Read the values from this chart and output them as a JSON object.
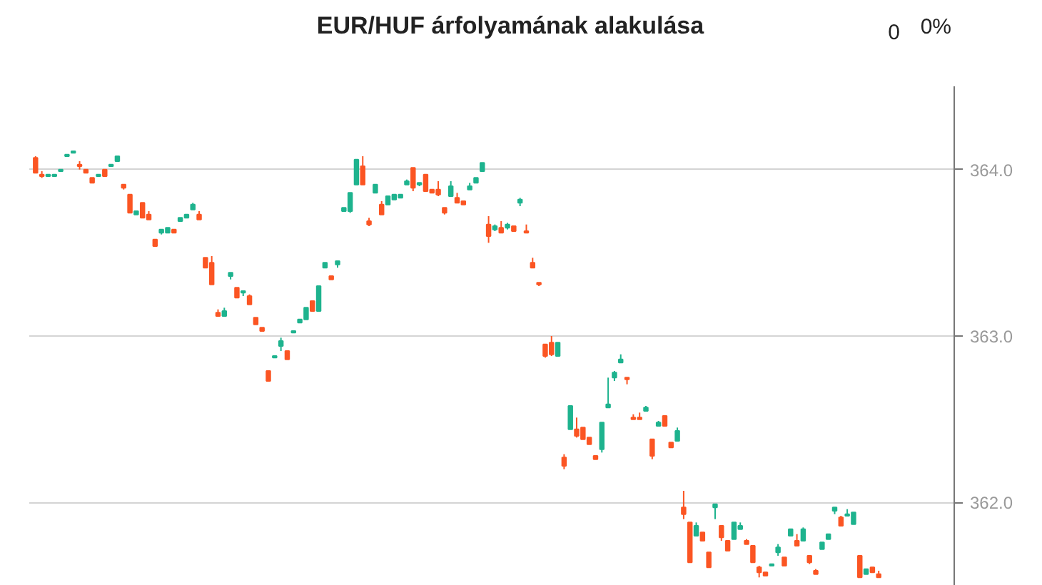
{
  "chart_data": {
    "type": "candlestick",
    "title": "EUR/HUF árfolyamának alakulása",
    "annotations": [
      "0",
      "0%"
    ],
    "colors": [
      "#fb5523",
      "#fb5523",
      "#1eb38e",
      "#1eb38e",
      "#1eb38e",
      "#1eb38e",
      "#1eb38e",
      "#fb5523",
      "#fb5523",
      "#fb5523",
      "#1eb38e",
      "#fb5523",
      "#1eb38e",
      "#1eb38e",
      "#fb5523",
      "#fb5523",
      "#1eb38e",
      "#fb5523",
      "#fb5523",
      "#fb5523",
      "#1eb38e",
      "#1eb38e",
      "#fb5523",
      "#1eb38e",
      "#1eb38e",
      "#1eb38e",
      "#fb5523",
      "#fb5523",
      "#fb5523",
      "#fb5523",
      "#1eb38e",
      "#1eb38e",
      "#fb5523",
      "#1eb38e",
      "#fb5523",
      "#fb5523",
      "#fb5523",
      "#fb5523",
      "#1eb38e",
      "#1eb38e",
      "#fb5523",
      "#1eb38e",
      "#1eb38e",
      "#1eb38e",
      "#fb5523",
      "#1eb38e",
      "#1eb38e",
      "#fb5523",
      "#1eb38e",
      "#1eb38e",
      "#1eb38e",
      "#1eb38e",
      "#fb5523",
      "#fb5523",
      "#1eb38e",
      "#fb5523",
      "#1eb38e",
      "#1eb38e",
      "#1eb38e",
      "#1eb38e",
      "#fb5523",
      "#1eb38e",
      "#fb5523",
      "#fb5523",
      "#fb5523",
      "#fb5523",
      "#1eb38e",
      "#fb5523",
      "#fb5523",
      "#1eb38e",
      "#1eb38e",
      "#1eb38e",
      "#fb5523",
      "#1eb38e",
      "#fb5523",
      "#1eb38e",
      "#fb5523",
      "#1eb38e",
      "#fb5523",
      "#fb5523",
      "#fb5523",
      "#fb5523",
      "#fb5523",
      "#1eb38e",
      "#fb5523",
      "#1eb38e",
      "#fb5523",
      "#fb5523",
      "#fb5523",
      "#fb5523",
      "#1eb38e",
      "#1eb38e",
      "#1eb38e",
      "#1eb38e",
      "#fb5523",
      "#fb5523",
      "#fb5523",
      "#1eb38e",
      "#fb5523",
      "#1eb38e",
      "#fb5523",
      "#fb5523",
      "#1eb38e",
      "#fb5523",
      "#fb5523",
      "#1eb38e",
      "#fb5523",
      "#fb5523",
      "#1eb38e",
      "#fb5523",
      "#fb5523",
      "#1eb38e",
      "#1eb38e",
      "#fb5523",
      "#fb5523",
      "#fb5523",
      "#fb5523",
      "#1eb38e",
      "#1eb38e",
      "#fb5523",
      "#1eb38e",
      "#fb5523",
      "#1eb38e",
      "#fb5523",
      "#fb5523",
      "#1eb38e",
      "#1eb38e",
      "#1eb38e",
      "#fb5523",
      "#1eb38e",
      "#1eb38e",
      "#fb5523",
      "#1eb38e",
      "#fb5523",
      "#fb5523"
    ],
    "ylim": [
      361.5,
      364.5
    ],
    "yticks": [
      {
        "value": 362,
        "label": "362.0"
      },
      {
        "value": 363,
        "label": "363.0"
      },
      {
        "value": 364,
        "label": "364.0"
      }
    ],
    "grid": "y",
    "tick_labels": "y",
    "categories": [
      null,
      null,
      null,
      null,
      null,
      null,
      null,
      null,
      null,
      null,
      null,
      null,
      null,
      null,
      null,
      null,
      null,
      null,
      null,
      null,
      null,
      null,
      null,
      null,
      null,
      null,
      null,
      null,
      null,
      null,
      null,
      null,
      null,
      null,
      null,
      null,
      null,
      null,
      null,
      null,
      null,
      null,
      null,
      null,
      null,
      null,
      null,
      null,
      null,
      null,
      null,
      null,
      null,
      null,
      null,
      null,
      null,
      null,
      null,
      null,
      null,
      null,
      null,
      null,
      null,
      null,
      null,
      null,
      null,
      null,
      null,
      null,
      null,
      null,
      null,
      null,
      null,
      null,
      null,
      null,
      null,
      null,
      null,
      null,
      null,
      null,
      null,
      null,
      null,
      null,
      null,
      null,
      null,
      null,
      null,
      null,
      null,
      null,
      null,
      null,
      null,
      null,
      null,
      null,
      null,
      null,
      null,
      null,
      null,
      null,
      null,
      null,
      null,
      null,
      null,
      null,
      null,
      null,
      null,
      null,
      null,
      null,
      null,
      null,
      null,
      null,
      null,
      null,
      null,
      null,
      null,
      null,
      null,
      null,
      null
    ],
    "ohlc": [
      [
        364.07,
        364.08,
        363.98,
        363.98
      ],
      [
        363.97,
        363.99,
        363.95,
        363.96
      ],
      [
        363.96,
        363.97,
        363.96,
        363.97
      ],
      [
        363.96,
        363.97,
        363.96,
        363.97
      ],
      [
        363.99,
        364.0,
        363.99,
        364.0
      ],
      [
        364.08,
        364.09,
        364.08,
        364.09
      ],
      [
        364.1,
        364.11,
        364.1,
        364.11
      ],
      [
        364.03,
        364.05,
        364.0,
        364.02
      ],
      [
        364.0,
        364.0,
        363.98,
        363.98
      ],
      [
        363.95,
        363.95,
        363.92,
        363.92
      ],
      [
        363.96,
        363.97,
        363.96,
        363.97
      ],
      [
        364.0,
        364.0,
        363.96,
        363.96
      ],
      [
        364.02,
        364.03,
        364.02,
        364.03
      ],
      [
        364.05,
        364.08,
        364.05,
        364.08
      ],
      [
        363.91,
        363.91,
        363.88,
        363.89
      ],
      [
        363.85,
        363.85,
        363.74,
        363.74
      ],
      [
        363.73,
        363.75,
        363.73,
        363.75
      ],
      [
        363.8,
        363.8,
        363.71,
        363.71
      ],
      [
        363.73,
        363.75,
        363.7,
        363.7
      ],
      [
        363.58,
        363.58,
        363.54,
        363.54
      ],
      [
        363.62,
        363.64,
        363.61,
        363.64
      ],
      [
        363.62,
        363.65,
        363.62,
        363.65
      ],
      [
        363.64,
        363.64,
        363.62,
        363.62
      ],
      [
        363.69,
        363.71,
        363.69,
        363.71
      ],
      [
        363.71,
        363.73,
        363.71,
        363.73
      ],
      [
        363.76,
        363.8,
        363.76,
        363.79
      ],
      [
        363.73,
        363.75,
        363.7,
        363.7
      ],
      [
        363.47,
        363.47,
        363.41,
        363.41
      ],
      [
        363.44,
        363.48,
        363.31,
        363.31
      ],
      [
        363.14,
        363.16,
        363.12,
        363.12
      ],
      [
        363.12,
        363.17,
        363.12,
        363.15
      ],
      [
        363.36,
        363.38,
        363.34,
        363.38
      ],
      [
        363.29,
        363.29,
        363.23,
        363.23
      ],
      [
        363.26,
        363.27,
        363.24,
        363.27
      ],
      [
        363.24,
        363.25,
        363.19,
        363.19
      ],
      [
        363.11,
        363.11,
        363.07,
        363.07
      ],
      [
        363.05,
        363.05,
        363.03,
        363.03
      ],
      [
        362.79,
        362.79,
        362.73,
        362.73
      ],
      [
        362.87,
        362.88,
        362.87,
        362.88
      ],
      [
        362.94,
        362.99,
        362.91,
        362.97
      ],
      [
        362.91,
        362.91,
        362.86,
        362.86
      ],
      [
        363.02,
        363.03,
        363.02,
        363.03
      ],
      [
        363.08,
        363.1,
        363.08,
        363.1
      ],
      [
        363.1,
        363.17,
        363.1,
        363.17
      ],
      [
        363.21,
        363.21,
        363.15,
        363.15
      ],
      [
        363.15,
        363.3,
        363.15,
        363.3
      ],
      [
        363.41,
        363.44,
        363.41,
        363.44
      ],
      [
        363.36,
        363.36,
        363.34,
        363.34
      ],
      [
        363.43,
        363.45,
        363.41,
        363.45
      ],
      [
        363.75,
        363.77,
        363.75,
        363.77
      ],
      [
        363.75,
        363.86,
        363.74,
        363.86
      ],
      [
        363.91,
        364.06,
        363.91,
        364.06
      ],
      [
        364.02,
        364.08,
        363.91,
        363.91
      ],
      [
        363.69,
        363.71,
        363.66,
        363.67
      ],
      [
        363.86,
        363.91,
        363.86,
        363.91
      ],
      [
        363.79,
        363.81,
        363.73,
        363.73
      ],
      [
        363.79,
        363.84,
        363.79,
        363.84
      ],
      [
        363.82,
        363.85,
        363.82,
        363.85
      ],
      [
        363.83,
        363.85,
        363.83,
        363.85
      ],
      [
        363.91,
        363.94,
        363.91,
        363.93
      ],
      [
        364.01,
        364.01,
        363.87,
        363.89
      ],
      [
        363.91,
        363.92,
        363.9,
        363.92
      ],
      [
        363.97,
        363.97,
        363.87,
        363.87
      ],
      [
        363.88,
        363.88,
        363.86,
        363.86
      ],
      [
        363.88,
        363.93,
        363.84,
        363.85
      ],
      [
        363.77,
        363.77,
        363.73,
        363.74
      ],
      [
        363.84,
        363.93,
        363.84,
        363.9
      ],
      [
        363.83,
        363.86,
        363.8,
        363.8
      ],
      [
        363.81,
        363.81,
        363.79,
        363.79
      ],
      [
        363.88,
        363.92,
        363.88,
        363.9
      ],
      [
        363.92,
        363.95,
        363.92,
        363.95
      ],
      [
        363.99,
        364.04,
        363.99,
        364.04
      ],
      [
        363.67,
        363.72,
        363.56,
        363.6
      ],
      [
        363.64,
        363.67,
        363.63,
        363.66
      ],
      [
        363.65,
        363.69,
        363.62,
        363.62
      ],
      [
        363.65,
        363.68,
        363.64,
        363.67
      ],
      [
        363.66,
        363.66,
        363.63,
        363.63
      ],
      [
        363.8,
        363.83,
        363.78,
        363.82
      ],
      [
        363.63,
        363.67,
        363.62,
        363.62
      ],
      [
        363.44,
        363.47,
        363.41,
        363.41
      ],
      [
        363.32,
        363.32,
        363.3,
        363.31
      ],
      [
        362.95,
        362.95,
        362.87,
        362.88
      ],
      [
        362.96,
        363.0,
        362.88,
        362.89
      ],
      [
        362.88,
        362.96,
        362.88,
        362.96
      ],
      [
        362.27,
        362.29,
        362.2,
        362.22
      ],
      [
        362.44,
        362.58,
        362.44,
        362.58
      ],
      [
        362.44,
        362.51,
        362.39,
        362.4
      ],
      [
        362.45,
        362.45,
        362.38,
        362.38
      ],
      [
        362.39,
        362.39,
        362.35,
        362.35
      ],
      [
        362.28,
        362.28,
        362.26,
        362.26
      ],
      [
        362.32,
        362.48,
        362.3,
        362.48
      ],
      [
        362.57,
        362.75,
        362.57,
        362.59
      ],
      [
        362.75,
        362.79,
        362.73,
        362.78
      ],
      [
        362.84,
        362.89,
        362.84,
        362.86
      ],
      [
        362.75,
        362.75,
        362.71,
        362.74
      ],
      [
        362.51,
        362.53,
        362.5,
        362.5
      ],
      [
        362.51,
        362.54,
        362.5,
        362.5
      ],
      [
        362.55,
        362.58,
        362.55,
        362.57
      ],
      [
        362.38,
        362.38,
        362.26,
        362.28
      ],
      [
        362.46,
        362.49,
        362.46,
        362.48
      ],
      [
        362.52,
        362.52,
        362.46,
        362.46
      ],
      [
        362.36,
        362.36,
        362.33,
        362.33
      ],
      [
        362.37,
        362.45,
        362.37,
        362.43
      ],
      [
        361.97,
        362.07,
        361.9,
        361.93
      ],
      [
        361.88,
        361.88,
        361.64,
        361.64
      ],
      [
        361.8,
        361.88,
        361.8,
        361.86
      ],
      [
        361.82,
        361.82,
        361.77,
        361.77
      ],
      [
        361.7,
        361.7,
        361.61,
        361.61
      ],
      [
        361.97,
        361.99,
        361.9,
        361.99
      ],
      [
        361.86,
        361.86,
        361.77,
        361.79
      ],
      [
        361.77,
        361.77,
        361.71,
        361.71
      ],
      [
        361.78,
        361.88,
        361.78,
        361.88
      ],
      [
        361.84,
        361.88,
        361.84,
        361.86
      ],
      [
        361.77,
        361.78,
        361.75,
        361.75
      ],
      [
        361.74,
        361.74,
        361.64,
        361.64
      ],
      [
        361.61,
        361.62,
        361.55,
        361.58
      ],
      [
        361.58,
        361.58,
        361.56,
        361.56
      ],
      [
        361.62,
        361.63,
        361.62,
        361.63
      ],
      [
        361.7,
        361.75,
        361.68,
        361.73
      ],
      [
        361.67,
        361.67,
        361.62,
        361.62
      ],
      [
        361.8,
        361.84,
        361.8,
        361.84
      ],
      [
        361.77,
        361.81,
        361.74,
        361.74
      ],
      [
        361.77,
        361.85,
        361.77,
        361.84
      ],
      [
        361.68,
        361.68,
        361.63,
        361.64
      ],
      [
        361.59,
        361.6,
        361.57,
        361.57
      ],
      [
        361.72,
        361.76,
        361.72,
        361.76
      ],
      [
        361.78,
        361.81,
        361.78,
        361.81
      ],
      [
        361.95,
        361.97,
        361.93,
        361.97
      ],
      [
        361.91,
        361.92,
        361.86,
        361.86
      ],
      [
        361.92,
        361.96,
        361.92,
        361.93
      ],
      [
        361.87,
        361.94,
        361.87,
        361.94
      ],
      [
        361.68,
        361.68,
        361.55,
        361.55
      ],
      [
        361.57,
        361.6,
        361.57,
        361.6
      ],
      [
        361.61,
        361.61,
        361.58,
        361.58
      ],
      [
        361.57,
        361.59,
        361.55,
        361.55
      ]
    ]
  }
}
